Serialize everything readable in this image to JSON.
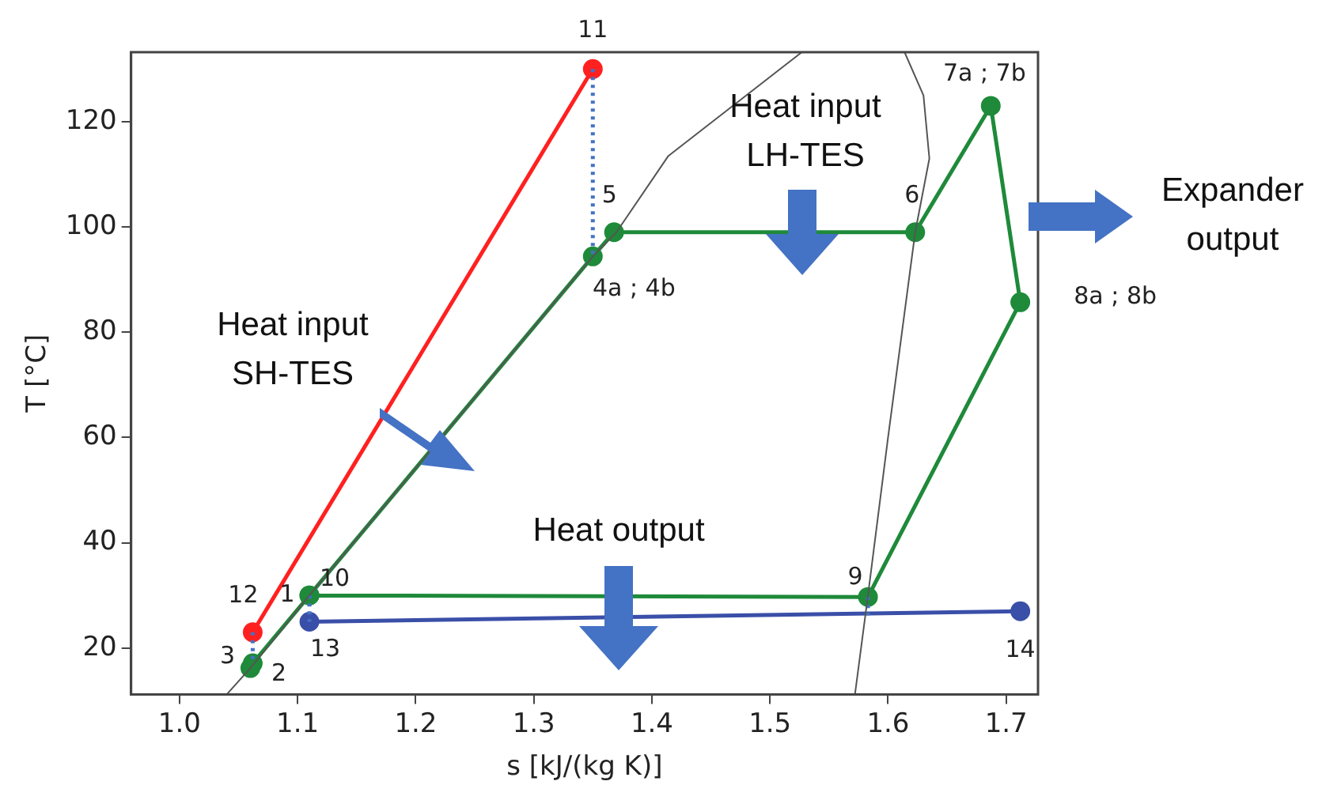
{
  "chart_data": {
    "type": "line",
    "xlabel": "s [kJ/(kg K)]",
    "ylabel": "T [°C]",
    "xlim": [
      0.959,
      1.727
    ],
    "ylim": [
      11.2,
      133.2
    ],
    "xticks": [
      {
        "value": 1,
        "label": "1.0"
      },
      1.1,
      1.2,
      1.3,
      1.4,
      1.5,
      1.6,
      1.7
    ],
    "yticks": [
      20,
      40,
      60,
      80,
      100,
      120
    ],
    "grid": false,
    "legend": false,
    "series": [
      {
        "color": "#555555",
        "marker": "none",
        "line_style": "solid",
        "x": [
          1.04,
          1.06,
          1.11,
          1.35,
          1.37,
          1.414,
          1.527
        ],
        "values": [
          11.2,
          16.2,
          30,
          94.4,
          99,
          113.5,
          133.2
        ]
      },
      {
        "color": "#555555",
        "marker": "none",
        "line_style": "solid",
        "x": [
          1.614,
          1.63,
          1.635,
          1.623,
          1.6,
          1.583,
          1.572
        ],
        "values": [
          133.2,
          125,
          113,
          99,
          60,
          30,
          11.2
        ]
      },
      {
        "color": "#4472c4",
        "marker": "none",
        "line_style": "dotted",
        "x": [
          1.35,
          1.35
        ],
        "values": [
          130,
          94.4
        ]
      },
      {
        "color": "#4472c4",
        "marker": "none",
        "line_style": "dotted",
        "x": [
          1.062,
          1.062
        ],
        "values": [
          23,
          17.1
        ]
      },
      {
        "color": "#4472c4",
        "marker": "none",
        "line_style": "dotted",
        "x": [
          1.11,
          1.11
        ],
        "values": [
          30,
          25
        ]
      },
      {
        "color": "#4472c4",
        "marker": "none",
        "line_style": "dotted",
        "x": [
          1.583,
          1.583
        ],
        "values": [
          29.7,
          26.2
        ]
      },
      {
        "color": "#ff2020",
        "marker": "circle",
        "line_style": "solid",
        "x": [
          1.062,
          1.35
        ],
        "values": [
          23,
          130
        ]
      },
      {
        "color": "#3a4fa8",
        "marker": "circle",
        "line_style": "solid",
        "x": [
          1.11,
          1.712
        ],
        "values": [
          25,
          27
        ]
      },
      {
        "color": "#1e8a3a",
        "marker": "circle",
        "line_style": "solid",
        "x": [
          1.06,
          1.062,
          1.11,
          1.35,
          1.368,
          1.623,
          1.687,
          1.712,
          1.583,
          1.11
        ],
        "values": [
          16.2,
          17.1,
          30,
          94.4,
          99,
          99,
          123,
          85.7,
          29.7,
          30
        ]
      }
    ],
    "annotations": [
      {
        "text": "11",
        "x": 1.35,
        "y": 130
      },
      {
        "text": "12",
        "x": 1.062,
        "y": 23
      },
      {
        "text": "3",
        "x": 1.062,
        "y": 17.1
      },
      {
        "text": "2",
        "x": 1.06,
        "y": 16.2
      },
      {
        "text": "1",
        "x": 1.11,
        "y": 30
      },
      {
        "text": "10",
        "x": 1.11,
        "y": 30
      },
      {
        "text": "13",
        "x": 1.11,
        "y": 25
      },
      {
        "text": "5",
        "x": 1.368,
        "y": 99
      },
      {
        "text": "4a ; 4b",
        "x": 1.35,
        "y": 94.4
      },
      {
        "text": "6",
        "x": 1.623,
        "y": 99
      },
      {
        "text": "7a ; 7b",
        "x": 1.687,
        "y": 123
      },
      {
        "text": "8a ; 8b",
        "x": 1.712,
        "y": 85.7
      },
      {
        "text": "9",
        "x": 1.583,
        "y": 29.7
      },
      {
        "text": "14",
        "x": 1.712,
        "y": 27
      },
      "Heat input SH-TES",
      "Heat input LH-TES",
      "Heat output",
      "Expander output"
    ]
  }
}
